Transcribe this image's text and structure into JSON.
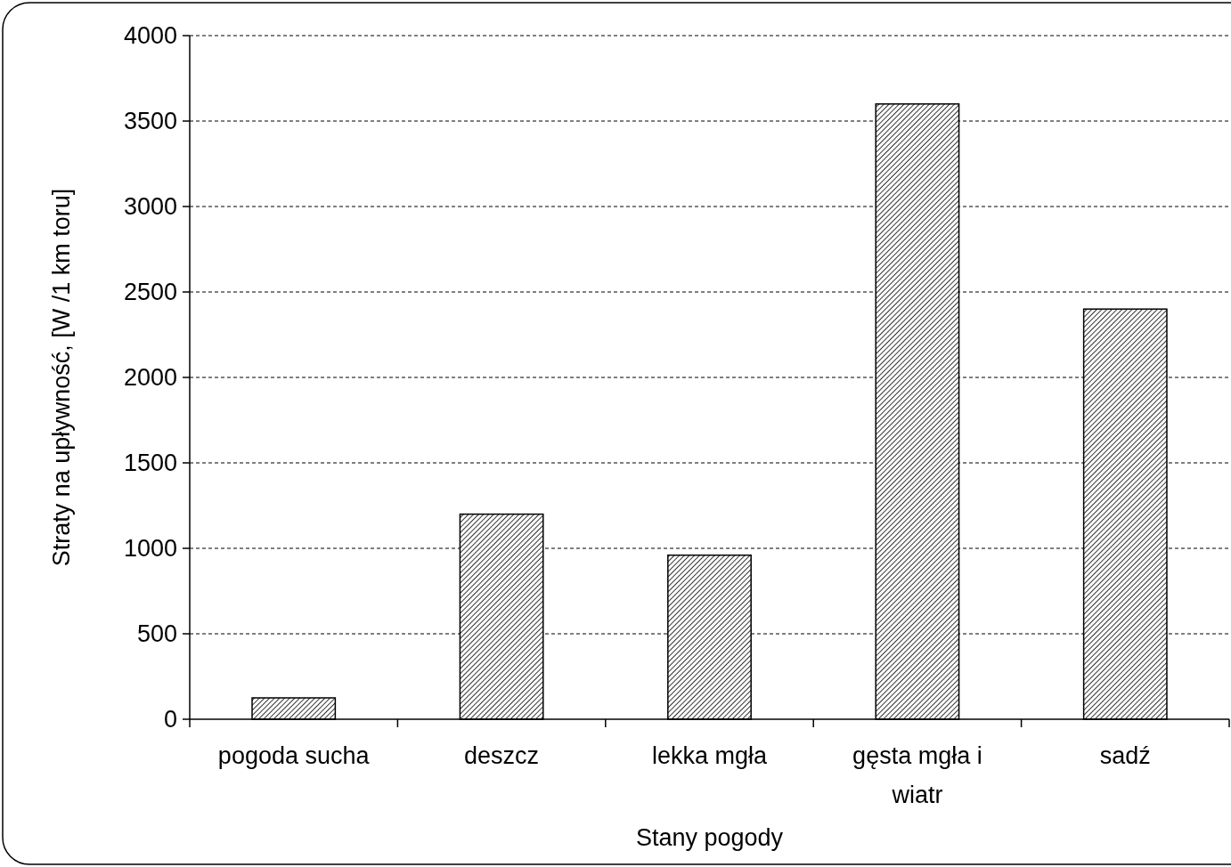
{
  "chart_data": {
    "type": "bar",
    "xlabel": "Stany pogody",
    "ylabel": "Straty na upływność, [W /1 km toru]",
    "categories": [
      "pogoda sucha",
      "deszcz",
      "lekka mgła",
      "gęsta mgła i wiatr",
      "sadź"
    ],
    "values": [
      125,
      1200,
      960,
      3600,
      2400
    ],
    "color": "#000000",
    "ylim": [
      0,
      4000
    ],
    "yticks": [
      0,
      500,
      1000,
      1500,
      2000,
      2500,
      3000,
      3500,
      4000
    ],
    "grid": "y"
  }
}
